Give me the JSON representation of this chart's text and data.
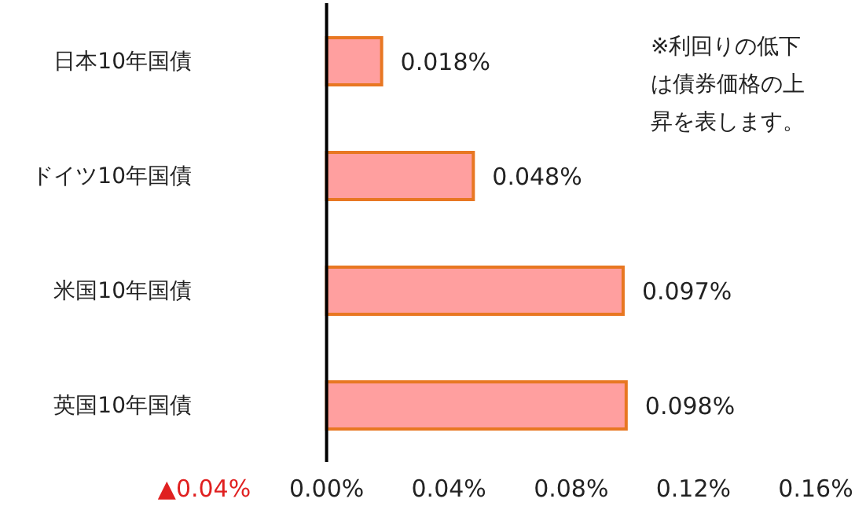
{
  "chart_data": {
    "type": "bar",
    "orientation": "horizontal",
    "categories": [
      "日本10年国債",
      "ドイツ10年国債",
      "米国10年国債",
      "英国10年国債"
    ],
    "values": [
      0.018,
      0.048,
      0.097,
      0.098
    ],
    "value_labels": [
      "0.018%",
      "0.048%",
      "0.097%",
      "0.098%"
    ],
    "color": "#ff9f9f",
    "xlim": [
      -0.04,
      0.16
    ],
    "xticks": [
      {
        "value": -0.04,
        "label": "▲0.04%"
      },
      {
        "value": 0,
        "label": "0.00%"
      },
      {
        "value": 0.04,
        "label": "0.04%"
      },
      {
        "value": 0.08,
        "label": "0.08%"
      },
      {
        "value": 0.12,
        "label": "0.12%"
      },
      {
        "value": 0.16,
        "label": "0.16%"
      }
    ],
    "annotations": [
      "※利回りの低下は債券価格の上昇を表します。"
    ],
    "legend": false
  }
}
